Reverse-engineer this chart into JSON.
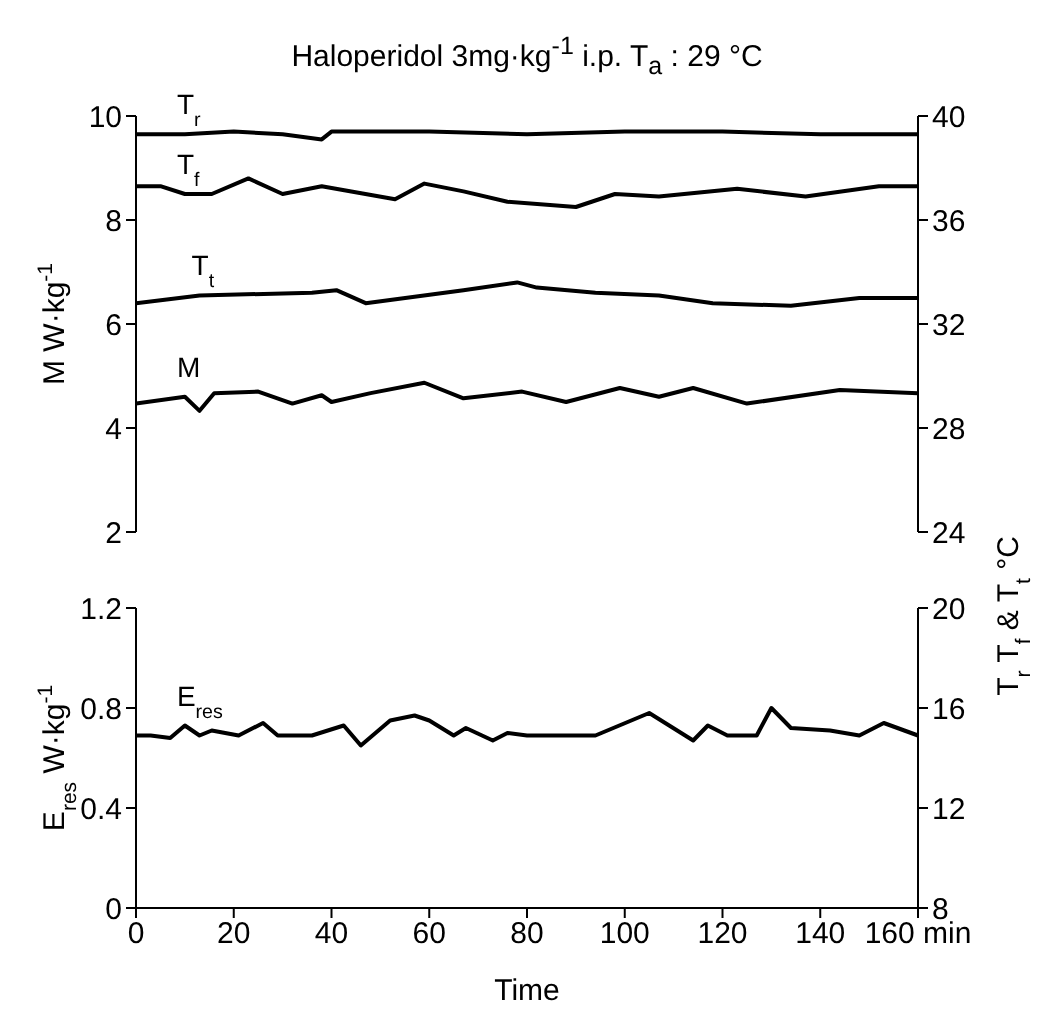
{
  "chart_data": [
    {
      "type": "line",
      "title": "Haloperidol  3mg·kg$^{-1}$ i.p.  T$_{a}$ : 29 °C",
      "ylabel": "M  W·kg$^{-1}$",
      "y2label": "T$_{r}$  T$_{f}$ & T$_{t}$   °C",
      "xlim": [
        0,
        160
      ],
      "ylim": [
        2,
        10
      ],
      "yticks": [
        2,
        4,
        6,
        8,
        10
      ],
      "y2lim": [
        24,
        40
      ],
      "y2ticks": [
        24,
        28,
        32,
        36,
        40
      ],
      "tick_labels": "y",
      "series": [
        {
          "name": "T$_{r}$",
          "color": "#000000",
          "axis": "y2",
          "x": [
            0,
            10,
            20,
            30,
            38,
            40,
            60,
            80,
            100,
            120,
            140,
            160
          ],
          "values": [
            39.3,
            39.3,
            39.4,
            39.3,
            39.1,
            39.4,
            39.4,
            39.3,
            39.4,
            39.4,
            39.3,
            39.3
          ]
        },
        {
          "name": "T$_{f}$",
          "color": "#000000",
          "axis": "y2",
          "x": [
            0,
            5,
            10,
            15.5,
            23,
            30,
            38,
            53,
            59,
            67,
            76,
            90,
            98,
            107,
            123,
            137,
            152,
            160
          ],
          "values": [
            37.3,
            37.3,
            37.0,
            37.0,
            37.6,
            37.0,
            37.3,
            36.8,
            37.4,
            37.1,
            36.7,
            36.5,
            37.0,
            36.9,
            37.2,
            36.9,
            37.3,
            37.3
          ]
        },
        {
          "name": "T$_{t}$",
          "color": "#000000",
          "axis": "y2",
          "x": [
            0,
            13,
            36,
            41,
            47,
            67,
            78,
            82,
            94,
            107,
            118,
            134,
            148,
            160
          ],
          "values": [
            32.8,
            33.1,
            33.2,
            33.3,
            32.8,
            33.3,
            33.6,
            33.4,
            33.2,
            33.1,
            32.8,
            32.7,
            33.0,
            33.0
          ]
        },
        {
          "name": "M",
          "color": "#000000",
          "axis": "y",
          "x": [
            0,
            10,
            13,
            16,
            25,
            32,
            38,
            40,
            48,
            59,
            67,
            79,
            88,
            99,
            107,
            114,
            125,
            144,
            160
          ],
          "values": [
            4.47,
            4.6,
            4.33,
            4.67,
            4.7,
            4.47,
            4.63,
            4.5,
            4.67,
            4.87,
            4.57,
            4.7,
            4.5,
            4.77,
            4.6,
            4.77,
            4.47,
            4.73,
            4.67
          ]
        }
      ]
    },
    {
      "type": "line",
      "ylabel": "E$_{res}$  W·kg$^{-1}$",
      "xlabel": "Time",
      "xlim": [
        0,
        160
      ],
      "xticks": [
        0,
        20,
        40,
        60,
        80,
        100,
        120,
        140,
        {
          "value": 160,
          "label": "160 min"
        }
      ],
      "ylim": [
        0,
        1.2
      ],
      "yticks": [
        0,
        0.4,
        0.8,
        1.2
      ],
      "y2lim": [
        8,
        20
      ],
      "y2ticks": [
        8,
        12,
        16,
        20
      ],
      "series": [
        {
          "name": "E$_{res}$",
          "color": "#000000",
          "axis": "y",
          "x": [
            0,
            3,
            7,
            10,
            13,
            15.5,
            21,
            26,
            29,
            36,
            42.5,
            46,
            52,
            57,
            60,
            65,
            67.5,
            73,
            76,
            80,
            94,
            105,
            114,
            117,
            121,
            127,
            130,
            134,
            142,
            148,
            153,
            160
          ],
          "values": [
            0.69,
            0.69,
            0.68,
            0.73,
            0.69,
            0.71,
            0.69,
            0.74,
            0.69,
            0.69,
            0.73,
            0.65,
            0.75,
            0.77,
            0.75,
            0.69,
            0.72,
            0.67,
            0.7,
            0.69,
            0.69,
            0.78,
            0.67,
            0.73,
            0.69,
            0.69,
            0.8,
            0.72,
            0.71,
            0.69,
            0.74,
            0.69
          ]
        }
      ]
    }
  ]
}
